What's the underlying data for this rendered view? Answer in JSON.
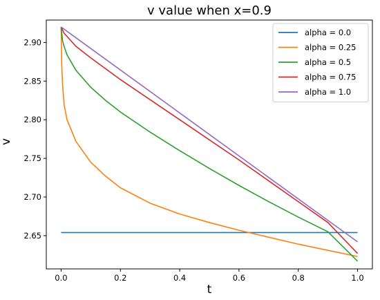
{
  "chart_data": {
    "type": "line",
    "title": "v value when x=0.9",
    "xlabel": "t",
    "ylabel": "v",
    "xlim": [
      -0.05,
      1.05
    ],
    "ylim": [
      2.607,
      2.929
    ],
    "xticks": [
      0.0,
      0.2,
      0.4,
      0.6,
      0.8,
      1.0
    ],
    "xtick_labels": [
      "0.0",
      "0.2",
      "0.4",
      "0.6",
      "0.8",
      "1.0"
    ],
    "yticks": [
      2.65,
      2.7,
      2.75,
      2.8,
      2.85,
      2.9
    ],
    "ytick_labels": [
      "2.65",
      "2.70",
      "2.75",
      "2.80",
      "2.85",
      "2.90"
    ],
    "grid": false,
    "legend_position": "top-right",
    "series": [
      {
        "name": "alpha = 0.0",
        "color": "#1f77b4",
        "x": [
          0.0,
          1.0
        ],
        "y": [
          2.654,
          2.654
        ]
      },
      {
        "name": "alpha = 0.25",
        "color": "#ff7f0e",
        "x": [
          0.0,
          0.002,
          0.005,
          0.01,
          0.02,
          0.05,
          0.1,
          0.15,
          0.2,
          0.3,
          0.4,
          0.5,
          0.6,
          0.7,
          0.8,
          0.9,
          1.0
        ],
        "y": [
          2.92,
          2.872,
          2.845,
          2.82,
          2.8,
          2.772,
          2.745,
          2.727,
          2.712,
          2.692,
          2.678,
          2.667,
          2.657,
          2.648,
          2.639,
          2.631,
          2.623
        ]
      },
      {
        "name": "alpha = 0.5",
        "color": "#2ca02c",
        "x": [
          0.0,
          0.005,
          0.01,
          0.02,
          0.05,
          0.1,
          0.15,
          0.2,
          0.3,
          0.4,
          0.5,
          0.6,
          0.7,
          0.8,
          0.9,
          1.0
        ],
        "y": [
          2.92,
          2.902,
          2.895,
          2.884,
          2.864,
          2.842,
          2.825,
          2.81,
          2.784,
          2.76,
          2.737,
          2.715,
          2.694,
          2.674,
          2.655,
          2.617
        ]
      },
      {
        "name": "alpha = 0.75",
        "color": "#d62728",
        "x": [
          0.0,
          0.01,
          0.05,
          0.1,
          0.2,
          0.3,
          0.4,
          0.5,
          0.6,
          0.7,
          0.8,
          0.9,
          1.0
        ],
        "y": [
          2.92,
          2.912,
          2.895,
          2.88,
          2.852,
          2.826,
          2.8,
          2.774,
          2.748,
          2.721,
          2.694,
          2.667,
          2.627
        ]
      },
      {
        "name": "alpha = 1.0",
        "color": "#9467bd",
        "x": [
          0.0,
          1.0
        ],
        "y": [
          2.92,
          2.642
        ]
      }
    ]
  }
}
